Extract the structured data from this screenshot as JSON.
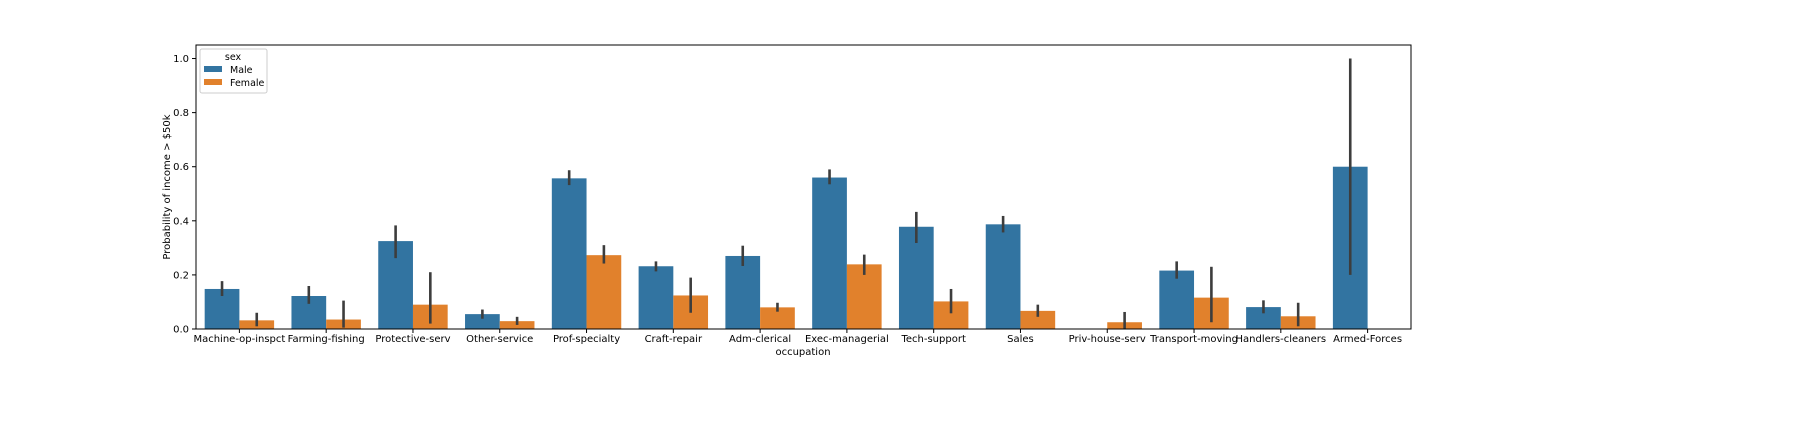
{
  "chart_data": {
    "type": "bar",
    "xlabel": "occupation",
    "ylabel": "Probability of income > $50k",
    "ylim": [
      0,
      1.05
    ],
    "yticks": [
      "0.0",
      "0.2",
      "0.4",
      "0.6",
      "0.8",
      "1.0"
    ],
    "categories": [
      "Machine-op-inspct",
      "Farming-fishing",
      "Protective-serv",
      "Other-service",
      "Prof-specialty",
      "Craft-repair",
      "Adm-clerical",
      "Exec-managerial",
      "Tech-support",
      "Sales",
      "Priv-house-serv",
      "Transport-moving",
      "Handlers-cleaners",
      "Armed-Forces"
    ],
    "legend": {
      "title": "sex",
      "position": "upper-left"
    },
    "series": [
      {
        "name": " Male",
        "color": "#3274a1",
        "values": [
          0.148,
          0.122,
          0.325,
          0.055,
          0.557,
          0.232,
          0.27,
          0.56,
          0.378,
          0.387,
          null,
          0.216,
          0.081,
          0.6
        ],
        "ci_low": [
          0.122,
          0.093,
          0.262,
          0.038,
          0.532,
          0.213,
          0.233,
          0.535,
          0.318,
          0.357,
          null,
          0.186,
          0.058,
          0.2
        ],
        "ci_high": [
          0.177,
          0.159,
          0.383,
          0.072,
          0.587,
          0.25,
          0.308,
          0.59,
          0.433,
          0.418,
          null,
          0.25,
          0.106,
          1.0
        ]
      },
      {
        "name": " Female",
        "color": "#e1812c",
        "values": [
          0.032,
          0.035,
          0.09,
          0.029,
          0.273,
          0.124,
          0.08,
          0.239,
          0.102,
          0.067,
          0.025,
          0.116,
          0.047,
          null
        ],
        "ci_low": [
          0.01,
          0.005,
          0.02,
          0.015,
          0.242,
          0.06,
          0.064,
          0.2,
          0.058,
          0.045,
          0.0,
          0.025,
          0.01,
          null
        ],
        "ci_high": [
          0.06,
          0.105,
          0.21,
          0.045,
          0.31,
          0.19,
          0.097,
          0.275,
          0.148,
          0.09,
          0.063,
          0.23,
          0.097,
          null
        ]
      }
    ]
  }
}
